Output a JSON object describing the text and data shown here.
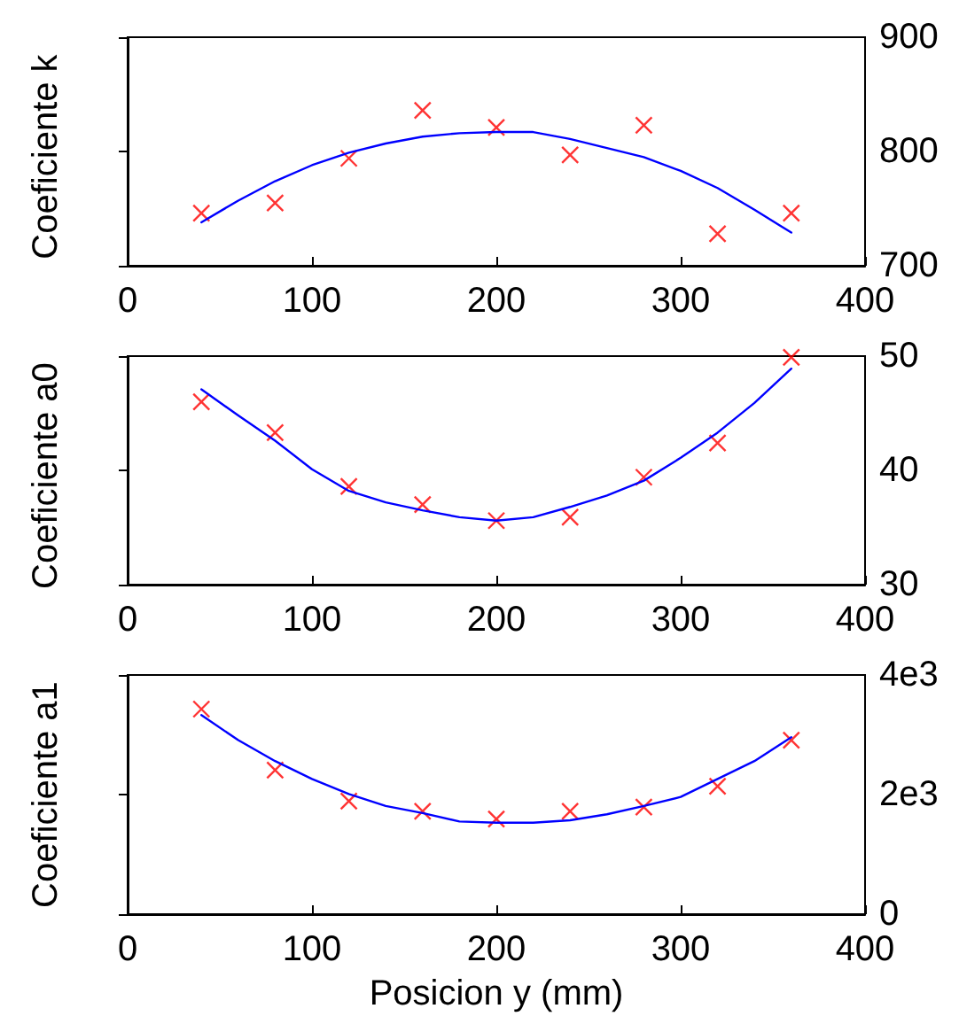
{
  "chart_data": [
    {
      "type": "scatter",
      "ylabel": "Coeficiente k",
      "xlim": [
        0,
        400
      ],
      "xticks": [
        0,
        100,
        200,
        300,
        400
      ],
      "ylim": [
        700,
        900
      ],
      "yticks": [
        700,
        800,
        900
      ],
      "grid": false,
      "series": [
        {
          "marker": "cross",
          "color": "#ff0000",
          "x": [
            40,
            80,
            120,
            160,
            200,
            240,
            280,
            320,
            360
          ],
          "values": [
            746,
            755,
            794,
            836,
            821,
            797,
            823,
            728,
            746
          ]
        },
        {
          "type": "line",
          "marker": "none",
          "line_style": "solid",
          "color": "#0000ff",
          "x": [
            40,
            60,
            80,
            100,
            120,
            140,
            160,
            180,
            200,
            220,
            240,
            260,
            280,
            300,
            320,
            340,
            360
          ],
          "values": [
            738,
            757,
            774,
            788,
            799,
            807,
            813,
            816,
            817,
            817,
            811,
            803,
            795,
            783,
            768,
            749,
            729
          ]
        }
      ]
    },
    {
      "type": "scatter",
      "ylabel": "Coeficiente a0",
      "xlim": [
        0,
        400
      ],
      "xticks": [
        0,
        100,
        200,
        300,
        400
      ],
      "ylim": [
        30,
        50
      ],
      "yticks": [
        30,
        40,
        50
      ],
      "grid": false,
      "series": [
        {
          "marker": "cross",
          "color": "#ff0000",
          "x": [
            40,
            80,
            120,
            160,
            200,
            240,
            280,
            320,
            360
          ],
          "values": [
            46.0,
            43.3,
            38.6,
            37.0,
            35.6,
            35.9,
            39.4,
            42.4,
            49.9
          ]
        },
        {
          "type": "line",
          "marker": "none",
          "line_style": "solid",
          "color": "#0000ff",
          "x": [
            40,
            60,
            80,
            100,
            120,
            140,
            160,
            180,
            200,
            220,
            240,
            260,
            280,
            300,
            320,
            340,
            360
          ],
          "values": [
            47.1,
            44.8,
            42.6,
            40.1,
            38.2,
            37.2,
            36.5,
            35.9,
            35.6,
            35.9,
            36.8,
            37.8,
            39.1,
            41.1,
            43.3,
            45.9,
            48.9
          ]
        }
      ]
    },
    {
      "type": "scatter",
      "ylabel": "Coeficiente a1",
      "xlabel": "Posicion y (mm)",
      "xlim": [
        0,
        400
      ],
      "xticks": [
        0,
        100,
        200,
        300,
        400
      ],
      "ylim": [
        0,
        4000
      ],
      "yticks": [
        {
          "value": 0,
          "label": "0"
        },
        {
          "value": 2000,
          "label": "2e3"
        },
        {
          "value": 4000,
          "label": "4e3"
        }
      ],
      "grid": false,
      "series": [
        {
          "marker": "cross",
          "color": "#ff0000",
          "x": [
            40,
            80,
            120,
            160,
            200,
            240,
            280,
            320,
            360
          ],
          "values": [
            3430,
            2410,
            1890,
            1720,
            1590,
            1720,
            1790,
            2140,
            2910
          ]
        },
        {
          "type": "line",
          "marker": "none",
          "line_style": "solid",
          "color": "#0000ff",
          "x": [
            40,
            60,
            80,
            100,
            120,
            140,
            160,
            180,
            200,
            220,
            240,
            260,
            280,
            300,
            320,
            340,
            360
          ],
          "values": [
            3330,
            2910,
            2560,
            2260,
            2010,
            1810,
            1690,
            1550,
            1530,
            1530,
            1570,
            1670,
            1810,
            1960,
            2260,
            2560,
            2960
          ]
        }
      ]
    }
  ]
}
